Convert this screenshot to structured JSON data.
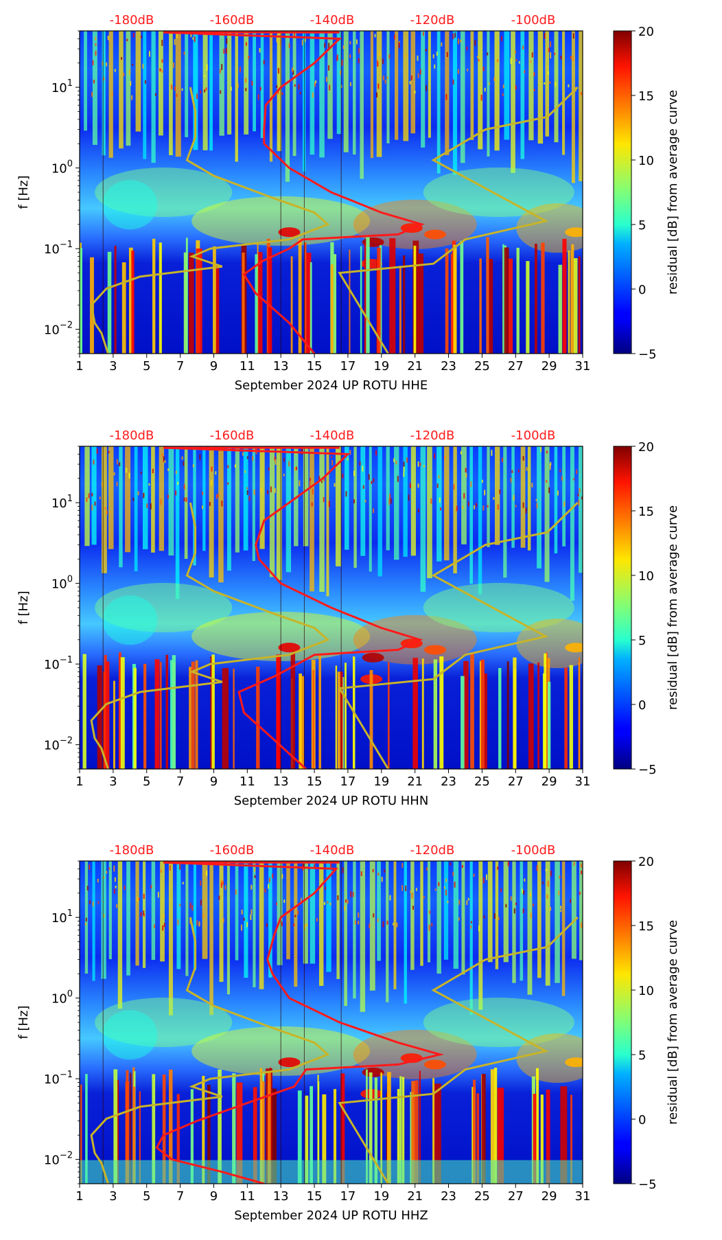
{
  "chart_data": [
    {
      "type": "heatmap",
      "title": "",
      "xlabel": "September 2024 UP ROTU  HHE",
      "ylabel": "f [Hz]",
      "xlim": [
        1,
        31
      ],
      "ylim": [
        0.005,
        50
      ],
      "yscale": "log",
      "x_ticks": [
        "1",
        "3",
        "5",
        "7",
        "9",
        "11",
        "13",
        "15",
        "17",
        "19",
        "21",
        "23",
        "25",
        "27",
        "29",
        "31"
      ],
      "y_ticks": [
        "10^-2",
        "10^-1",
        "10^0",
        "10^1"
      ],
      "top_db_labels": [
        "-180dB",
        "-160dB",
        "-140dB",
        "-120dB",
        "-100dB"
      ],
      "colorbar": {
        "label": "residual [dB] from average curve",
        "range": [
          -5,
          20
        ],
        "ticks": [
          "20",
          "15",
          "10",
          "5",
          "0",
          "−5"
        ]
      },
      "noise_model_low": [
        [
          0.005,
          2.7
        ],
        [
          0.009,
          2.3
        ],
        [
          0.012,
          1.9
        ],
        [
          0.02,
          1.7
        ],
        [
          0.032,
          2.6
        ],
        [
          0.045,
          4.6
        ],
        [
          0.06,
          9.5
        ],
        [
          0.08,
          7.7
        ],
        [
          0.1,
          8.8
        ],
        [
          0.13,
          13.5
        ],
        [
          0.2,
          15.8
        ],
        [
          0.28,
          15
        ],
        [
          0.45,
          12.2
        ],
        [
          0.8,
          9
        ],
        [
          1.25,
          7.4
        ],
        [
          2.4,
          7.9
        ],
        [
          5,
          7.9
        ],
        [
          10,
          7.6
        ]
      ],
      "noise_model_high": [
        [
          0.005,
          19.4
        ],
        [
          0.05,
          16.5
        ],
        [
          0.065,
          22.1
        ],
        [
          0.13,
          24
        ],
        [
          0.22,
          28.8
        ],
        [
          1.25,
          22.1
        ],
        [
          3,
          25.2
        ],
        [
          4.3,
          28.9
        ],
        [
          10,
          30.7
        ]
      ],
      "mean_psd": [
        [
          0.005,
          15
        ],
        [
          0.012,
          13.5
        ],
        [
          0.028,
          11.5
        ],
        [
          0.048,
          10.8
        ],
        [
          0.07,
          11.9
        ],
        [
          0.1,
          13.5
        ],
        [
          0.13,
          14.3
        ],
        [
          0.15,
          20
        ],
        [
          0.2,
          21.4
        ],
        [
          0.28,
          19
        ],
        [
          0.5,
          16
        ],
        [
          1,
          13.5
        ],
        [
          2,
          12
        ],
        [
          3,
          12
        ],
        [
          6,
          12.1
        ],
        [
          10,
          13
        ],
        [
          20,
          15
        ],
        [
          40,
          16.5
        ],
        [
          48,
          6
        ]
      ]
    },
    {
      "type": "heatmap",
      "title": "",
      "xlabel": "September 2024 UP ROTU  HHN",
      "ylabel": "f [Hz]",
      "xlim": [
        1,
        31
      ],
      "ylim": [
        0.005,
        50
      ],
      "yscale": "log",
      "x_ticks": [
        "1",
        "3",
        "5",
        "7",
        "9",
        "11",
        "13",
        "15",
        "17",
        "19",
        "21",
        "23",
        "25",
        "27",
        "29",
        "31"
      ],
      "y_ticks": [
        "10^-2",
        "10^-1",
        "10^0",
        "10^1"
      ],
      "top_db_labels": [
        "-180dB",
        "-160dB",
        "-140dB",
        "-120dB",
        "-100dB"
      ],
      "colorbar": {
        "label": "residual [dB] from average curve",
        "range": [
          -5,
          20
        ],
        "ticks": [
          "20",
          "15",
          "10",
          "5",
          "0",
          "−5"
        ]
      },
      "noise_model_low": [
        [
          0.005,
          2.7
        ],
        [
          0.009,
          2.3
        ],
        [
          0.012,
          1.9
        ],
        [
          0.02,
          1.7
        ],
        [
          0.032,
          2.6
        ],
        [
          0.045,
          4.6
        ],
        [
          0.06,
          9.5
        ],
        [
          0.08,
          7.7
        ],
        [
          0.1,
          8.8
        ],
        [
          0.13,
          13.5
        ],
        [
          0.2,
          15.8
        ],
        [
          0.28,
          15
        ],
        [
          0.45,
          12.2
        ],
        [
          0.8,
          9
        ],
        [
          1.25,
          7.4
        ],
        [
          2.4,
          7.9
        ],
        [
          5,
          7.9
        ],
        [
          10,
          7.6
        ]
      ],
      "noise_model_high": [
        [
          0.005,
          19.4
        ],
        [
          0.05,
          16.5
        ],
        [
          0.065,
          22.1
        ],
        [
          0.13,
          24
        ],
        [
          0.22,
          28.8
        ],
        [
          1.25,
          22.1
        ],
        [
          3,
          25.2
        ],
        [
          4.3,
          28.9
        ],
        [
          10,
          30.7
        ]
      ],
      "mean_psd": [
        [
          0.005,
          14.5
        ],
        [
          0.012,
          12.5
        ],
        [
          0.025,
          10.8
        ],
        [
          0.045,
          10.5
        ],
        [
          0.07,
          12.6
        ],
        [
          0.1,
          14
        ],
        [
          0.13,
          15
        ],
        [
          0.15,
          20
        ],
        [
          0.2,
          21.3
        ],
        [
          0.28,
          19
        ],
        [
          0.5,
          16
        ],
        [
          1,
          13
        ],
        [
          2,
          11.7
        ],
        [
          3,
          11.5
        ],
        [
          6,
          12
        ],
        [
          10,
          13.5
        ],
        [
          20,
          15.5
        ],
        [
          40,
          17
        ],
        [
          48,
          6
        ]
      ]
    },
    {
      "type": "heatmap",
      "title": "",
      "xlabel": "September 2024 UP ROTU  HHZ",
      "ylabel": "f [Hz]",
      "xlim": [
        1,
        31
      ],
      "ylim": [
        0.005,
        50
      ],
      "yscale": "log",
      "x_ticks": [
        "1",
        "3",
        "5",
        "7",
        "9",
        "11",
        "13",
        "15",
        "17",
        "19",
        "21",
        "23",
        "25",
        "27",
        "29",
        "31"
      ],
      "y_ticks": [
        "10^-2",
        "10^-1",
        "10^0",
        "10^1"
      ],
      "top_db_labels": [
        "-180dB",
        "-160dB",
        "-140dB",
        "-120dB",
        "-100dB"
      ],
      "colorbar": {
        "label": "residual [dB] from average curve",
        "range": [
          -5,
          20
        ],
        "ticks": [
          "20",
          "15",
          "10",
          "5",
          "0",
          "−5"
        ]
      },
      "noise_model_low": [
        [
          0.005,
          2.7
        ],
        [
          0.009,
          2.3
        ],
        [
          0.012,
          1.9
        ],
        [
          0.02,
          1.7
        ],
        [
          0.032,
          2.6
        ],
        [
          0.045,
          4.6
        ],
        [
          0.06,
          9.5
        ],
        [
          0.08,
          7.7
        ],
        [
          0.1,
          8.8
        ],
        [
          0.13,
          13.5
        ],
        [
          0.2,
          15.8
        ],
        [
          0.28,
          15
        ],
        [
          0.45,
          12.2
        ],
        [
          0.8,
          9
        ],
        [
          1.25,
          7.4
        ],
        [
          2.4,
          7.9
        ],
        [
          5,
          7.9
        ],
        [
          10,
          7.6
        ]
      ],
      "noise_model_high": [
        [
          0.005,
          19.4
        ],
        [
          0.05,
          16.5
        ],
        [
          0.065,
          22.1
        ],
        [
          0.13,
          24
        ],
        [
          0.22,
          28.8
        ],
        [
          1.25,
          22.1
        ],
        [
          3,
          25.2
        ],
        [
          4.3,
          28.9
        ],
        [
          10,
          30.7
        ]
      ],
      "mean_psd": [
        [
          0.005,
          12
        ],
        [
          0.007,
          9.5
        ],
        [
          0.01,
          6.5
        ],
        [
          0.014,
          5.6
        ],
        [
          0.02,
          6
        ],
        [
          0.03,
          8
        ],
        [
          0.05,
          11
        ],
        [
          0.08,
          13.8
        ],
        [
          0.13,
          14.5
        ],
        [
          0.15,
          20
        ],
        [
          0.2,
          22.5
        ],
        [
          0.28,
          20
        ],
        [
          0.5,
          16.5
        ],
        [
          1,
          13.5
        ],
        [
          2,
          12.5
        ],
        [
          3,
          12.2
        ],
        [
          6,
          12.6
        ],
        [
          10,
          13
        ],
        [
          20,
          15
        ],
        [
          40,
          16.3
        ],
        [
          48,
          6
        ]
      ]
    }
  ]
}
